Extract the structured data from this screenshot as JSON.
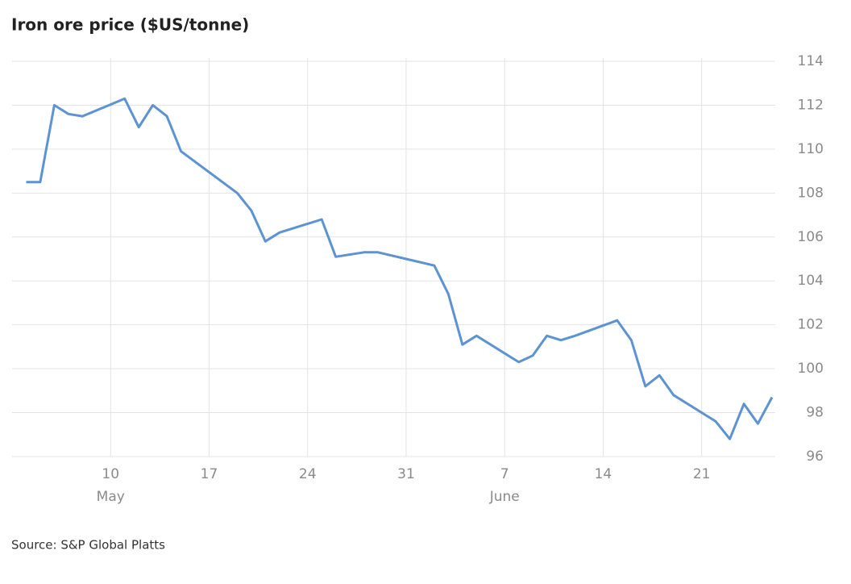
{
  "chart_data": {
    "type": "line",
    "title": "Iron ore price ($US/tonne)",
    "source": "Source: S&P Global Platts",
    "x": [
      "05-04",
      "05-05",
      "05-06",
      "05-07",
      "05-08",
      "05-11",
      "05-12",
      "05-13",
      "05-14",
      "05-15",
      "05-19",
      "05-20",
      "05-21",
      "05-22",
      "05-25",
      "05-26",
      "05-28",
      "05-29",
      "06-02",
      "06-03",
      "06-04",
      "06-05",
      "06-08",
      "06-09",
      "06-10",
      "06-11",
      "06-12",
      "06-15",
      "06-16",
      "06-17",
      "06-18",
      "06-19",
      "06-22",
      "06-23",
      "06-24",
      "06-25",
      "06-26"
    ],
    "values": [
      108.5,
      108.5,
      112.0,
      111.6,
      111.5,
      112.3,
      111.0,
      112.0,
      111.5,
      109.9,
      108.0,
      107.2,
      105.8,
      106.2,
      106.8,
      105.1,
      105.3,
      105.3,
      104.7,
      103.4,
      101.1,
      101.5,
      100.3,
      100.6,
      101.5,
      101.3,
      101.5,
      102.2,
      101.3,
      99.2,
      99.7,
      98.8,
      97.6,
      96.8,
      98.4,
      97.5,
      98.7
    ],
    "color": "#5b93d3",
    "xlim": [
      "05-03",
      "06-26"
    ],
    "xticks": [
      {
        "value": "05-10",
        "label": "10"
      },
      {
        "value": "05-17",
        "label": "17"
      },
      {
        "value": "05-24",
        "label": "24"
      },
      {
        "value": "05-31",
        "label": "31"
      },
      {
        "value": "06-07",
        "label": "7"
      },
      {
        "value": "06-14",
        "label": "14"
      },
      {
        "value": "06-21",
        "label": "21"
      }
    ],
    "month_labels": [
      {
        "value": "05-10",
        "label": "May"
      },
      {
        "value": "06-07",
        "label": "June"
      }
    ],
    "ylim": [
      96,
      114
    ],
    "yticks": [
      96,
      98,
      100,
      102,
      104,
      106,
      108,
      110,
      112,
      114
    ],
    "grid": true
  }
}
